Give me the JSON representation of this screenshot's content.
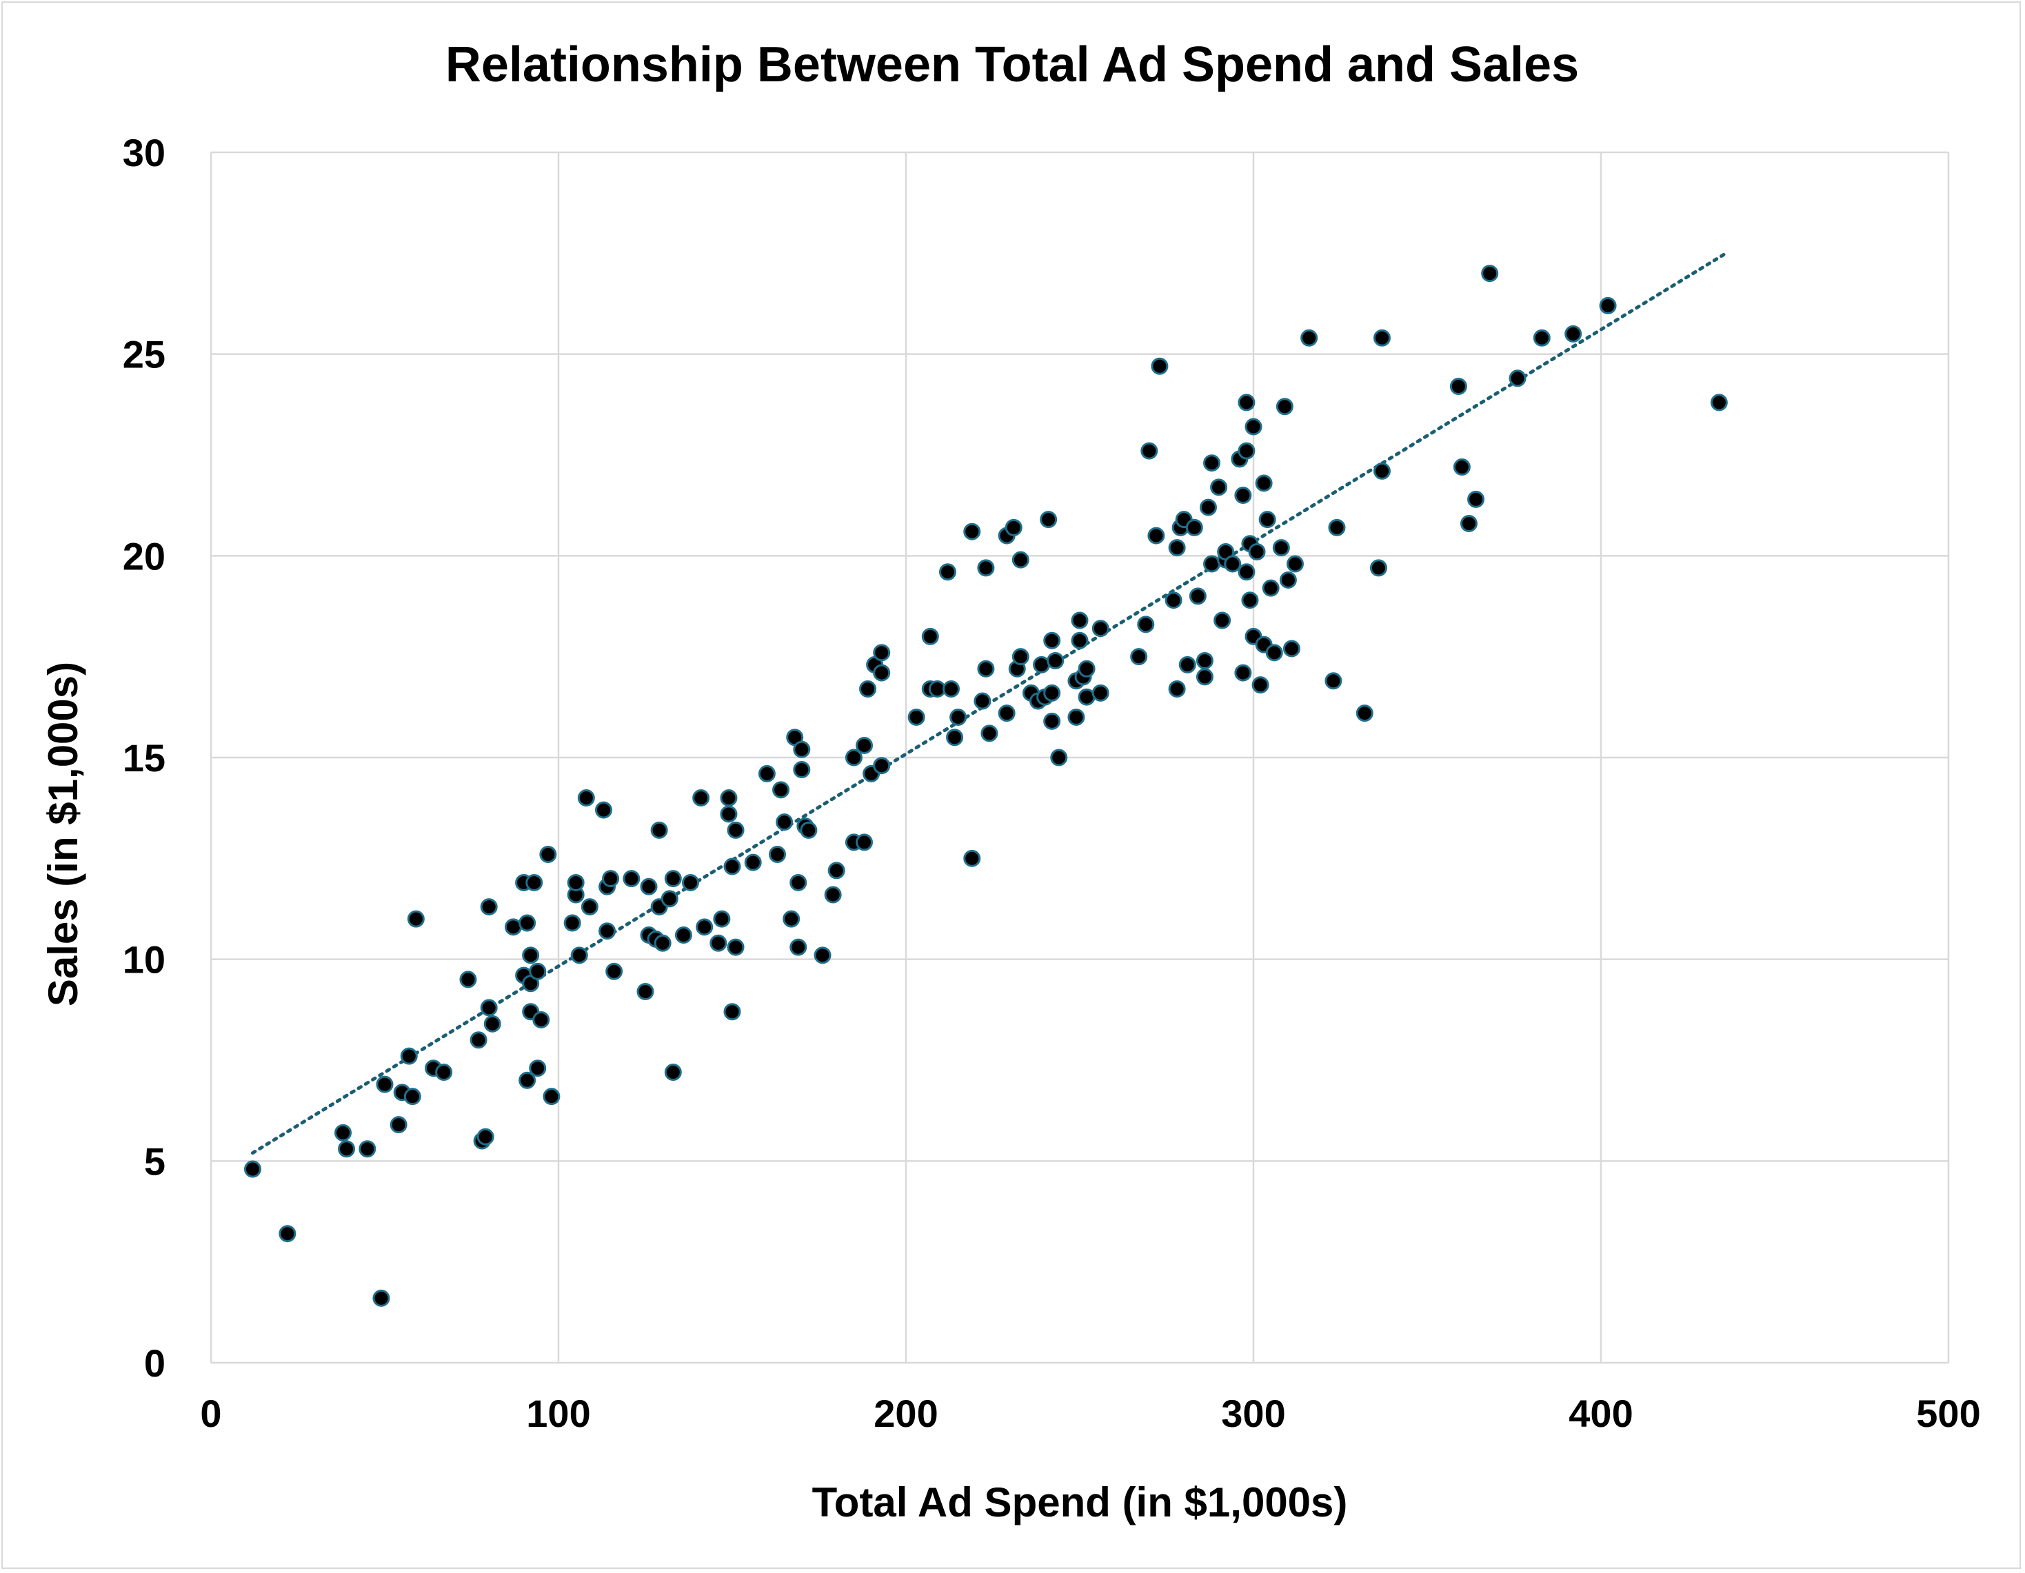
{
  "chart_data": {
    "type": "scatter",
    "title": "Relationship Between Total Ad Spend and Sales",
    "xlabel": "Total Ad Spend (in $1,000s)",
    "ylabel": "Sales (in $1,000s)",
    "xlim": [
      0,
      500
    ],
    "ylim": [
      0,
      30
    ],
    "xticks": [
      "0",
      "100",
      "200",
      "300",
      "400",
      "500"
    ],
    "yticks": [
      "0",
      "5",
      "10",
      "15",
      "20",
      "25",
      "30"
    ],
    "xtick_values": [
      0,
      100,
      200,
      300,
      400,
      500
    ],
    "ytick_values": [
      0,
      5,
      10,
      15,
      20,
      25,
      30
    ],
    "grid": true,
    "trendline": {
      "type": "linear",
      "x": [
        12,
        436
      ],
      "y": [
        5.2,
        27.5
      ]
    },
    "colors": {
      "point_fill": "#000000",
      "point_edge": "#1f6f8b",
      "trendline": "#1a5e73",
      "grid": "#d9d9d9"
    },
    "series": [
      {
        "points": [
          [
            12,
            4.8
          ],
          [
            22,
            3.2
          ],
          [
            38,
            5.7
          ],
          [
            39,
            5.3
          ],
          [
            45,
            5.3
          ],
          [
            49,
            1.6
          ],
          [
            50,
            6.9
          ],
          [
            54,
            5.9
          ],
          [
            55,
            6.7
          ],
          [
            57,
            7.6
          ],
          [
            58,
            6.6
          ],
          [
            59,
            11.0
          ],
          [
            64,
            7.3
          ],
          [
            67,
            7.2
          ],
          [
            74,
            9.5
          ],
          [
            77,
            8.0
          ],
          [
            78,
            5.5
          ],
          [
            79,
            5.6
          ],
          [
            80,
            8.8
          ],
          [
            80,
            11.3
          ],
          [
            81,
            8.4
          ],
          [
            87,
            10.8
          ],
          [
            90,
            11.9
          ],
          [
            90,
            9.6
          ],
          [
            91,
            10.9
          ],
          [
            91,
            7.0
          ],
          [
            92,
            10.1
          ],
          [
            92,
            8.7
          ],
          [
            92,
            9.4
          ],
          [
            93,
            11.9
          ],
          [
            94,
            9.7
          ],
          [
            94,
            7.3
          ],
          [
            95,
            8.5
          ],
          [
            97,
            12.6
          ],
          [
            98,
            6.6
          ],
          [
            104,
            10.9
          ],
          [
            105,
            11.6
          ],
          [
            105,
            11.9
          ],
          [
            106,
            10.1
          ],
          [
            108,
            14.0
          ],
          [
            109,
            11.3
          ],
          [
            113,
            13.7
          ],
          [
            114,
            10.7
          ],
          [
            114,
            11.8
          ],
          [
            115,
            12.0
          ],
          [
            116,
            9.7
          ],
          [
            121,
            12.0
          ],
          [
            125,
            9.2
          ],
          [
            126,
            10.6
          ],
          [
            126,
            11.8
          ],
          [
            128,
            10.5
          ],
          [
            129,
            11.3
          ],
          [
            129,
            13.2
          ],
          [
            130,
            10.4
          ],
          [
            132,
            11.5
          ],
          [
            133,
            12.0
          ],
          [
            133,
            7.2
          ],
          [
            136,
            10.6
          ],
          [
            138,
            11.9
          ],
          [
            141,
            14.0
          ],
          [
            142,
            10.8
          ],
          [
            146,
            10.4
          ],
          [
            147,
            11.0
          ],
          [
            149,
            14.0
          ],
          [
            149,
            13.6
          ],
          [
            150,
            12.3
          ],
          [
            150,
            8.7
          ],
          [
            151,
            10.3
          ],
          [
            151,
            13.2
          ],
          [
            156,
            12.4
          ],
          [
            160,
            14.6
          ],
          [
            163,
            12.6
          ],
          [
            164,
            14.2
          ],
          [
            165,
            13.4
          ],
          [
            167,
            11.0
          ],
          [
            168,
            15.5
          ],
          [
            169,
            10.3
          ],
          [
            169,
            11.9
          ],
          [
            170,
            14.7
          ],
          [
            170,
            15.2
          ],
          [
            171,
            13.3
          ],
          [
            172,
            13.2
          ],
          [
            176,
            10.1
          ],
          [
            179,
            11.6
          ],
          [
            180,
            12.2
          ],
          [
            185,
            12.9
          ],
          [
            185,
            15.0
          ],
          [
            188,
            12.9
          ],
          [
            188,
            15.3
          ],
          [
            189,
            16.7
          ],
          [
            190,
            14.6
          ],
          [
            191,
            17.3
          ],
          [
            193,
            14.8
          ],
          [
            193,
            17.6
          ],
          [
            193,
            17.1
          ],
          [
            203,
            16.0
          ],
          [
            207,
            18.0
          ],
          [
            207,
            16.7
          ],
          [
            209,
            16.7
          ],
          [
            212,
            19.6
          ],
          [
            213,
            16.7
          ],
          [
            214,
            15.5
          ],
          [
            215,
            16.0
          ],
          [
            219,
            20.6
          ],
          [
            219,
            12.5
          ],
          [
            222,
            16.4
          ],
          [
            223,
            17.2
          ],
          [
            223,
            19.7
          ],
          [
            224,
            15.6
          ],
          [
            229,
            16.1
          ],
          [
            229,
            20.5
          ],
          [
            231,
            20.7
          ],
          [
            232,
            17.2
          ],
          [
            233,
            17.5
          ],
          [
            233,
            19.9
          ],
          [
            236,
            16.6
          ],
          [
            238,
            16.4
          ],
          [
            239,
            17.3
          ],
          [
            240,
            16.5
          ],
          [
            241,
            20.9
          ],
          [
            242,
            16.6
          ],
          [
            242,
            17.9
          ],
          [
            242,
            15.9
          ],
          [
            243,
            17.4
          ],
          [
            244,
            15.0
          ],
          [
            249,
            16.9
          ],
          [
            249,
            16.0
          ],
          [
            250,
            18.4
          ],
          [
            250,
            17.9
          ],
          [
            251,
            17.0
          ],
          [
            252,
            16.5
          ],
          [
            252,
            17.2
          ],
          [
            256,
            16.6
          ],
          [
            256,
            18.2
          ],
          [
            267,
            17.5
          ],
          [
            269,
            18.3
          ],
          [
            270,
            22.6
          ],
          [
            272,
            20.5
          ],
          [
            273,
            24.7
          ],
          [
            277,
            18.9
          ],
          [
            278,
            16.7
          ],
          [
            278,
            20.2
          ],
          [
            279,
            20.7
          ],
          [
            280,
            20.9
          ],
          [
            281,
            17.3
          ],
          [
            283,
            20.7
          ],
          [
            284,
            19.0
          ],
          [
            286,
            17.4
          ],
          [
            286,
            17.0
          ],
          [
            287,
            21.2
          ],
          [
            288,
            19.8
          ],
          [
            288,
            22.3
          ],
          [
            290,
            21.7
          ],
          [
            291,
            18.4
          ],
          [
            292,
            19.9
          ],
          [
            292,
            20.1
          ],
          [
            294,
            19.8
          ],
          [
            296,
            22.4
          ],
          [
            297,
            17.1
          ],
          [
            297,
            21.5
          ],
          [
            298,
            23.8
          ],
          [
            298,
            22.6
          ],
          [
            298,
            19.6
          ],
          [
            299,
            18.9
          ],
          [
            299,
            20.3
          ],
          [
            300,
            18.0
          ],
          [
            300,
            23.2
          ],
          [
            301,
            20.1
          ],
          [
            302,
            16.8
          ],
          [
            303,
            21.8
          ],
          [
            303,
            17.8
          ],
          [
            304,
            20.9
          ],
          [
            305,
            19.2
          ],
          [
            306,
            17.6
          ],
          [
            308,
            20.2
          ],
          [
            309,
            23.7
          ],
          [
            310,
            19.4
          ],
          [
            311,
            17.7
          ],
          [
            312,
            19.8
          ],
          [
            316,
            25.4
          ],
          [
            323,
            16.9
          ],
          [
            324,
            20.7
          ],
          [
            332,
            16.1
          ],
          [
            336,
            19.7
          ],
          [
            337,
            25.4
          ],
          [
            337,
            22.1
          ],
          [
            359,
            24.2
          ],
          [
            360,
            22.2
          ],
          [
            362,
            20.8
          ],
          [
            364,
            21.4
          ],
          [
            368,
            27.0
          ],
          [
            376,
            24.4
          ],
          [
            383,
            25.4
          ],
          [
            392,
            25.5
          ],
          [
            402,
            26.2
          ],
          [
            434,
            23.8
          ]
        ]
      }
    ]
  }
}
